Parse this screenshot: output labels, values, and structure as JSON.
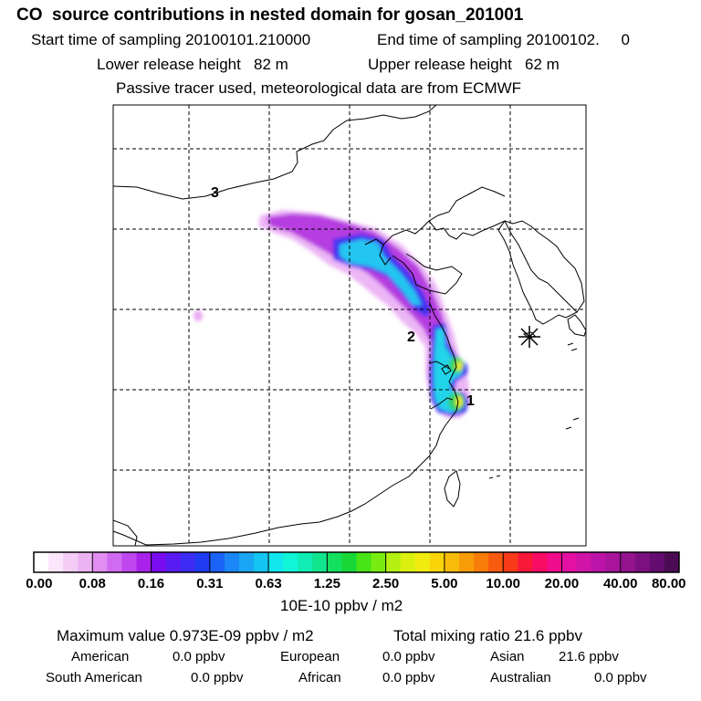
{
  "header": {
    "title": "CO  source contributions in nested domain for gosan_201001",
    "start_time": "Start time of sampling 20100101.210000",
    "end_time": "End time of sampling 20100102.     0",
    "lower_release": "Lower release height   82 m",
    "upper_release": "Upper release height   62 m",
    "note": "Passive tracer used, meteorological data are from ECMWF"
  },
  "map": {
    "labels": [
      "1",
      "2",
      "3"
    ],
    "receptor_icon": "asterisk-star-icon"
  },
  "colorbar": {
    "units": "10E-10 ppbv / m2",
    "tick_labels": [
      "0.00",
      "0.08",
      "0.16",
      "0.31",
      "0.63",
      "1.25",
      "2.50",
      "5.00",
      "10.00",
      "20.00",
      "40.00",
      "80.00"
    ],
    "colors": [
      "#ffffff",
      "#fbe6fb",
      "#f4cdf6",
      "#ecb3f2",
      "#e08ef0",
      "#d06af0",
      "#bf47ee",
      "#a922ea",
      "#7a0cf0",
      "#5a1bf2",
      "#3c2cf4",
      "#1f3cf2",
      "#1b62f6",
      "#1b86f6",
      "#1aa6f4",
      "#14c4f2",
      "#12e6ee",
      "#10f4d8",
      "#10ecb4",
      "#10e48c",
      "#14e060",
      "#18d838",
      "#48e418",
      "#78ec10",
      "#b4f010",
      "#dcf010",
      "#f0ec10",
      "#f8d408",
      "#f8bc08",
      "#f89c08",
      "#f87c08",
      "#f85a10",
      "#f83a18",
      "#f81838",
      "#f80c64",
      "#f00c8c",
      "#e410a4",
      "#d014a8",
      "#bc14a8",
      "#a8149c",
      "#941490",
      "#7c1080",
      "#640c70",
      "#4c0c54"
    ]
  },
  "chart_data": {
    "type": "heatmap",
    "title": "CO  source contributions in nested domain for gosan_201001",
    "colorbar_levels": [
      0.0,
      0.08,
      0.16,
      0.31,
      0.63,
      1.25,
      2.5,
      5.0,
      10.0,
      20.0,
      40.0,
      80.0
    ],
    "colorbar_units": "10E-10 ppbv / m2",
    "max_value": "0.973E-09 ppbv / m2",
    "total_mixing_ratio_ppbv": 21.6,
    "grid": true,
    "annotations": [
      "1",
      "2",
      "3"
    ]
  },
  "stats": {
    "max_value": "Maximum value  0.973E-09 ppbv / m2",
    "total_mixing_ratio": "Total mixing ratio       21.6 ppbv",
    "regions": [
      {
        "name": "American",
        "value": "0.0 ppbv"
      },
      {
        "name": "European",
        "value": "0.0 ppbv"
      },
      {
        "name": "Asian",
        "value": "21.6 ppbv"
      },
      {
        "name": "South American",
        "value": "0.0 ppbv"
      },
      {
        "name": "African",
        "value": "0.0 ppbv"
      },
      {
        "name": "Australian",
        "value": "0.0 ppbv"
      }
    ]
  }
}
